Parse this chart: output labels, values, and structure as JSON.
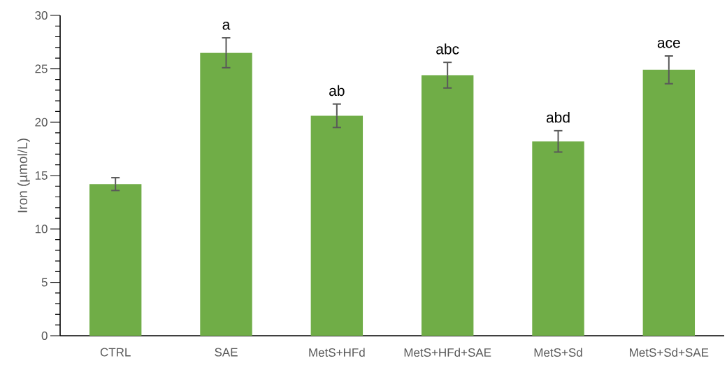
{
  "chart_data": {
    "type": "bar",
    "ylabel": "Iron (µmol/L)",
    "categories": [
      "CTRL",
      "SAE",
      "MetS+HFd",
      "MetS+HFd+SAE",
      "MetS+Sd",
      "MetS+Sd+SAE"
    ],
    "values": [
      14.2,
      26.5,
      20.6,
      24.4,
      18.2,
      24.9
    ],
    "errors": [
      0.6,
      1.4,
      1.1,
      1.2,
      1.0,
      1.3
    ],
    "color": "#70ad47",
    "ylim": [
      0,
      30
    ],
    "yticks": [
      0,
      5,
      10,
      15,
      20,
      25,
      30
    ],
    "grid": false,
    "annotations": [
      {
        "text": "a",
        "x": "SAE",
        "y": 27.9
      },
      {
        "text": "ab",
        "x": "MetS+HFd",
        "y": 21.7
      },
      {
        "text": "abc",
        "x": "MetS+HFd+SAE",
        "y": 25.6
      },
      {
        "text": "abd",
        "x": "MetS+Sd",
        "y": 19.2
      },
      {
        "text": "ace",
        "x": "MetS+Sd+SAE",
        "y": 26.2
      }
    ]
  }
}
